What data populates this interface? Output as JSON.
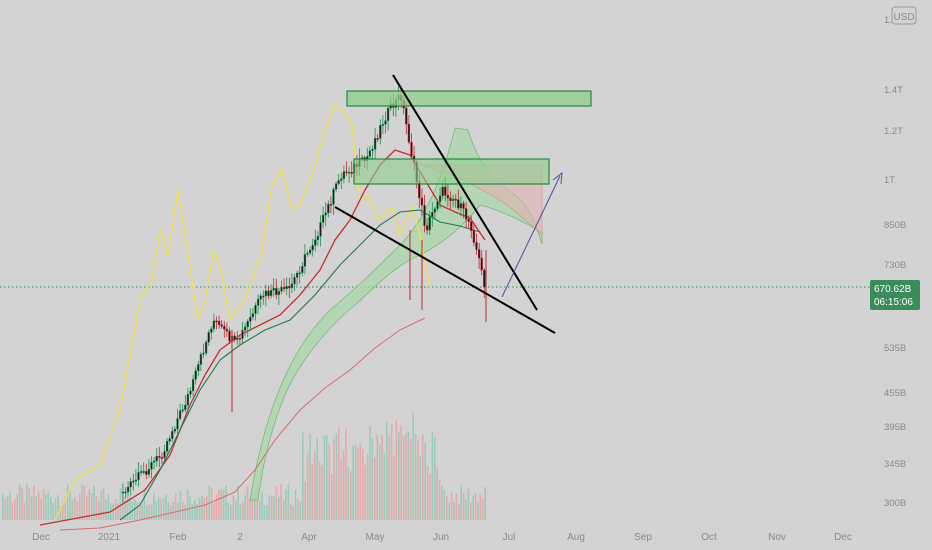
{
  "chart_data": {
    "type": "candlestick",
    "currency_badge": "USD",
    "x_ticks": [
      "Dec",
      "2021",
      "Feb",
      "2",
      "Apr",
      "May",
      "Jun",
      "Jul",
      "Aug",
      "Sep",
      "Oct",
      "Nov",
      "Dec"
    ],
    "y_ticks": [
      "1.",
      "1.4T",
      "1.2T",
      "1T",
      "850B",
      "730B",
      "535B",
      "455B",
      "395B",
      "345B",
      "300B"
    ],
    "y_ticks_values_usd": [
      1600,
      1400,
      1200,
      1000,
      850,
      730,
      535,
      455,
      395,
      345,
      300
    ],
    "y_scale": "log",
    "last_price_label": "670.62B",
    "last_price_value_usd_b": 670.62,
    "countdown_label": "06:15:06",
    "price_path_usd_b": [
      {
        "x": "Dec",
        "y": 280
      },
      {
        "x": "2021",
        "y": 300
      },
      {
        "x": "Jan",
        "y": 360
      },
      {
        "x": "Feb",
        "y": 460
      },
      {
        "x": "Feb",
        "y": 560
      },
      {
        "x": "Mar",
        "y": 590
      },
      {
        "x": "Mar",
        "y": 600
      },
      {
        "x": "Apr",
        "y": 660
      },
      {
        "x": "Apr",
        "y": 820
      },
      {
        "x": "Apr",
        "y": 950
      },
      {
        "x": "May",
        "y": 1200
      },
      {
        "x": "May",
        "y": 1400
      },
      {
        "x": "May",
        "y": 900
      },
      {
        "x": "Jun",
        "y": 950
      },
      {
        "x": "Jun",
        "y": 760
      },
      {
        "x": "Jun",
        "y": 670.62
      }
    ],
    "annotations": [
      {
        "type": "zone",
        "name": "upper-resistance-zone",
        "y_range_usd_b": [
          1350,
          1450
        ]
      },
      {
        "type": "zone",
        "name": "mid-resistance-zone",
        "y_range_usd_b": [
          980,
          1100
        ]
      },
      {
        "type": "trendline",
        "name": "wedge-upper-line"
      },
      {
        "type": "trendline",
        "name": "wedge-lower-line"
      },
      {
        "type": "arrow",
        "name": "breakout-projection-arrow"
      }
    ],
    "colors": {
      "up_candle": "#1e8f52",
      "down_candle": "#c0272d",
      "zone_fill": "#8fcf8f",
      "zone_border": "#0a7a23",
      "ema_yellow": "#f2e24b",
      "ema_red": "#c33030",
      "cloud_green": "#4caf50",
      "price_tag": "#3a8c5b",
      "arrow": "#4a4fa3"
    }
  }
}
